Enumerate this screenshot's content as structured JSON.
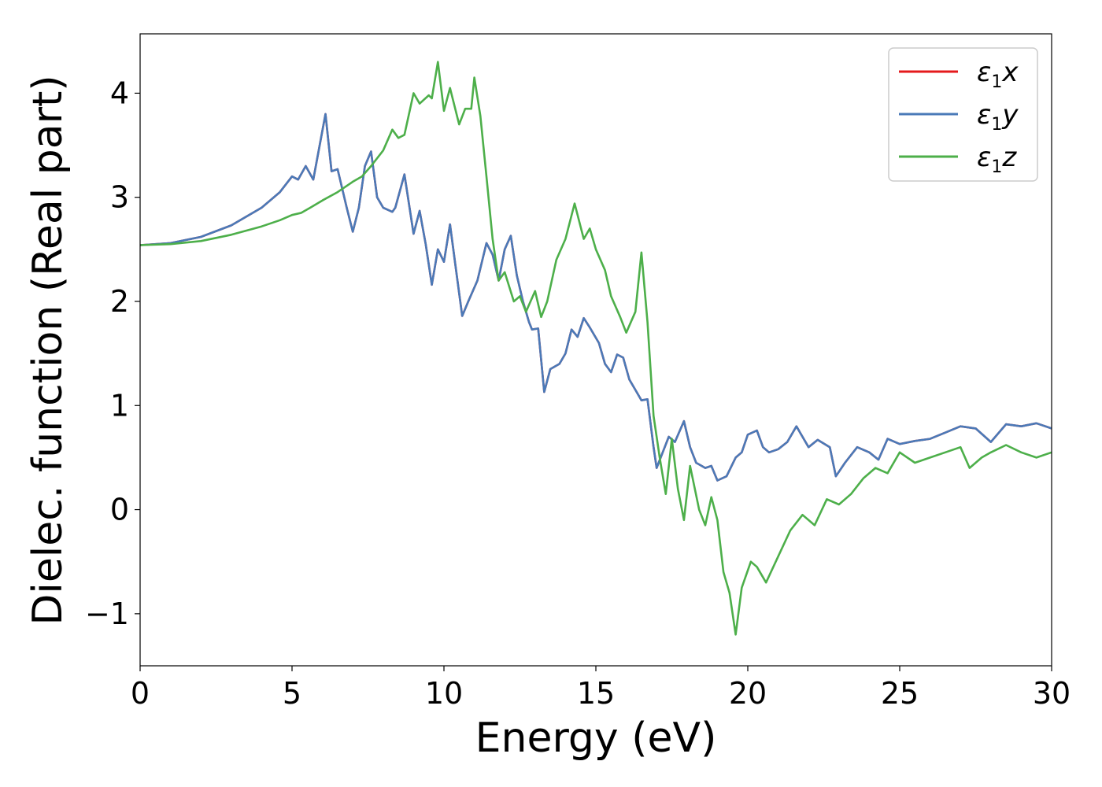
{
  "chart_data": {
    "type": "line",
    "xlabel": "Energy (eV)",
    "ylabel": "Dielec. function (Real part)",
    "xlim": [
      0,
      30
    ],
    "ylim": [
      -1.5,
      4.57
    ],
    "xticks": [
      "0",
      "5",
      "10",
      "15",
      "20",
      "25",
      "30"
    ],
    "yticks": [
      "−1",
      "0",
      "1",
      "2",
      "3",
      "4"
    ],
    "grid": false,
    "legend_position": "top-right",
    "series": [
      {
        "name": "ε1x",
        "symbol": "ε",
        "subscript": "1",
        "axis": "x",
        "color": "#e41a1c",
        "points": [
          [
            0,
            2.54
          ],
          [
            1,
            2.56
          ],
          [
            2,
            2.62
          ],
          [
            3,
            2.73
          ],
          [
            4,
            2.9
          ],
          [
            4.6,
            3.05
          ],
          [
            5,
            3.2
          ],
          [
            5.2,
            3.17
          ],
          [
            5.45,
            3.3
          ],
          [
            5.7,
            3.17
          ],
          [
            6.1,
            3.8
          ],
          [
            6.3,
            3.25
          ],
          [
            6.5,
            3.27
          ],
          [
            6.8,
            2.9
          ],
          [
            7.0,
            2.67
          ],
          [
            7.2,
            2.9
          ],
          [
            7.4,
            3.3
          ],
          [
            7.6,
            3.44
          ],
          [
            7.8,
            3.0
          ],
          [
            8.0,
            2.9
          ],
          [
            8.3,
            2.86
          ],
          [
            8.4,
            2.9
          ],
          [
            8.7,
            3.22
          ],
          [
            9.0,
            2.65
          ],
          [
            9.2,
            2.87
          ],
          [
            9.4,
            2.55
          ],
          [
            9.6,
            2.16
          ],
          [
            9.8,
            2.5
          ],
          [
            10.0,
            2.38
          ],
          [
            10.2,
            2.74
          ],
          [
            10.4,
            2.3
          ],
          [
            10.6,
            1.86
          ],
          [
            10.8,
            2.0
          ],
          [
            11.1,
            2.2
          ],
          [
            11.4,
            2.56
          ],
          [
            11.6,
            2.45
          ],
          [
            11.8,
            2.2
          ],
          [
            12.0,
            2.5
          ],
          [
            12.2,
            2.63
          ],
          [
            12.4,
            2.25
          ],
          [
            12.6,
            2.0
          ],
          [
            12.8,
            1.8
          ],
          [
            12.9,
            1.73
          ],
          [
            13.1,
            1.74
          ],
          [
            13.3,
            1.13
          ],
          [
            13.5,
            1.35
          ],
          [
            13.8,
            1.4
          ],
          [
            14.0,
            1.5
          ],
          [
            14.2,
            1.73
          ],
          [
            14.4,
            1.66
          ],
          [
            14.6,
            1.84
          ],
          [
            14.8,
            1.75
          ],
          [
            15.1,
            1.6
          ],
          [
            15.3,
            1.4
          ],
          [
            15.5,
            1.32
          ],
          [
            15.7,
            1.49
          ],
          [
            15.9,
            1.46
          ],
          [
            16.1,
            1.25
          ],
          [
            16.3,
            1.15
          ],
          [
            16.5,
            1.05
          ],
          [
            16.7,
            1.06
          ],
          [
            16.9,
            0.6
          ],
          [
            17.0,
            0.4
          ],
          [
            17.2,
            0.55
          ],
          [
            17.4,
            0.7
          ],
          [
            17.6,
            0.65
          ],
          [
            17.9,
            0.85
          ],
          [
            18.1,
            0.6
          ],
          [
            18.3,
            0.45
          ],
          [
            18.6,
            0.4
          ],
          [
            18.8,
            0.42
          ],
          [
            19.0,
            0.28
          ],
          [
            19.3,
            0.32
          ],
          [
            19.6,
            0.5
          ],
          [
            19.8,
            0.55
          ],
          [
            20.0,
            0.72
          ],
          [
            20.3,
            0.76
          ],
          [
            20.5,
            0.6
          ],
          [
            20.7,
            0.55
          ],
          [
            21.0,
            0.58
          ],
          [
            21.3,
            0.65
          ],
          [
            21.6,
            0.8
          ],
          [
            22.0,
            0.6
          ],
          [
            22.3,
            0.67
          ],
          [
            22.7,
            0.6
          ],
          [
            22.9,
            0.32
          ],
          [
            23.2,
            0.45
          ],
          [
            23.6,
            0.6
          ],
          [
            24.0,
            0.55
          ],
          [
            24.3,
            0.48
          ],
          [
            24.6,
            0.68
          ],
          [
            25.0,
            0.63
          ],
          [
            25.5,
            0.66
          ],
          [
            26.0,
            0.68
          ],
          [
            26.5,
            0.74
          ],
          [
            27.0,
            0.8
          ],
          [
            27.5,
            0.78
          ],
          [
            28.0,
            0.65
          ],
          [
            28.5,
            0.82
          ],
          [
            29.0,
            0.8
          ],
          [
            29.5,
            0.83
          ],
          [
            30.0,
            0.78
          ]
        ]
      },
      {
        "name": "ε1y",
        "symbol": "ε",
        "subscript": "1",
        "axis": "y",
        "color": "#4a7ab8",
        "points": [
          [
            0,
            2.54
          ],
          [
            1,
            2.56
          ],
          [
            2,
            2.62
          ],
          [
            3,
            2.73
          ],
          [
            4,
            2.9
          ],
          [
            4.6,
            3.05
          ],
          [
            5,
            3.2
          ],
          [
            5.2,
            3.17
          ],
          [
            5.45,
            3.3
          ],
          [
            5.7,
            3.17
          ],
          [
            6.1,
            3.8
          ],
          [
            6.3,
            3.25
          ],
          [
            6.5,
            3.27
          ],
          [
            6.8,
            2.9
          ],
          [
            7.0,
            2.67
          ],
          [
            7.2,
            2.9
          ],
          [
            7.4,
            3.3
          ],
          [
            7.6,
            3.44
          ],
          [
            7.8,
            3.0
          ],
          [
            8.0,
            2.9
          ],
          [
            8.3,
            2.86
          ],
          [
            8.4,
            2.9
          ],
          [
            8.7,
            3.22
          ],
          [
            9.0,
            2.65
          ],
          [
            9.2,
            2.87
          ],
          [
            9.4,
            2.55
          ],
          [
            9.6,
            2.16
          ],
          [
            9.8,
            2.5
          ],
          [
            10.0,
            2.38
          ],
          [
            10.2,
            2.74
          ],
          [
            10.4,
            2.3
          ],
          [
            10.6,
            1.86
          ],
          [
            10.8,
            2.0
          ],
          [
            11.1,
            2.2
          ],
          [
            11.4,
            2.56
          ],
          [
            11.6,
            2.45
          ],
          [
            11.8,
            2.2
          ],
          [
            12.0,
            2.5
          ],
          [
            12.2,
            2.63
          ],
          [
            12.4,
            2.25
          ],
          [
            12.6,
            2.0
          ],
          [
            12.8,
            1.8
          ],
          [
            12.9,
            1.73
          ],
          [
            13.1,
            1.74
          ],
          [
            13.3,
            1.13
          ],
          [
            13.5,
            1.35
          ],
          [
            13.8,
            1.4
          ],
          [
            14.0,
            1.5
          ],
          [
            14.2,
            1.73
          ],
          [
            14.4,
            1.66
          ],
          [
            14.6,
            1.84
          ],
          [
            14.8,
            1.75
          ],
          [
            15.1,
            1.6
          ],
          [
            15.3,
            1.4
          ],
          [
            15.5,
            1.32
          ],
          [
            15.7,
            1.49
          ],
          [
            15.9,
            1.46
          ],
          [
            16.1,
            1.25
          ],
          [
            16.3,
            1.15
          ],
          [
            16.5,
            1.05
          ],
          [
            16.7,
            1.06
          ],
          [
            16.9,
            0.6
          ],
          [
            17.0,
            0.4
          ],
          [
            17.2,
            0.55
          ],
          [
            17.4,
            0.7
          ],
          [
            17.6,
            0.65
          ],
          [
            17.9,
            0.85
          ],
          [
            18.1,
            0.6
          ],
          [
            18.3,
            0.45
          ],
          [
            18.6,
            0.4
          ],
          [
            18.8,
            0.42
          ],
          [
            19.0,
            0.28
          ],
          [
            19.3,
            0.32
          ],
          [
            19.6,
            0.5
          ],
          [
            19.8,
            0.55
          ],
          [
            20.0,
            0.72
          ],
          [
            20.3,
            0.76
          ],
          [
            20.5,
            0.6
          ],
          [
            20.7,
            0.55
          ],
          [
            21.0,
            0.58
          ],
          [
            21.3,
            0.65
          ],
          [
            21.6,
            0.8
          ],
          [
            22.0,
            0.6
          ],
          [
            22.3,
            0.67
          ],
          [
            22.7,
            0.6
          ],
          [
            22.9,
            0.32
          ],
          [
            23.2,
            0.45
          ],
          [
            23.6,
            0.6
          ],
          [
            24.0,
            0.55
          ],
          [
            24.3,
            0.48
          ],
          [
            24.6,
            0.68
          ],
          [
            25.0,
            0.63
          ],
          [
            25.5,
            0.66
          ],
          [
            26.0,
            0.68
          ],
          [
            26.5,
            0.74
          ],
          [
            27.0,
            0.8
          ],
          [
            27.5,
            0.78
          ],
          [
            28.0,
            0.65
          ],
          [
            28.5,
            0.82
          ],
          [
            29.0,
            0.8
          ],
          [
            29.5,
            0.83
          ],
          [
            30.0,
            0.78
          ]
        ]
      },
      {
        "name": "ε1z",
        "symbol": "ε",
        "subscript": "1",
        "axis": "z",
        "color": "#4daf4a",
        "points": [
          [
            0,
            2.54
          ],
          [
            1,
            2.55
          ],
          [
            2,
            2.58
          ],
          [
            3,
            2.64
          ],
          [
            4,
            2.72
          ],
          [
            4.6,
            2.78
          ],
          [
            5,
            2.83
          ],
          [
            5.3,
            2.85
          ],
          [
            5.6,
            2.9
          ],
          [
            6.0,
            2.97
          ],
          [
            6.5,
            3.05
          ],
          [
            7.0,
            3.15
          ],
          [
            7.3,
            3.2
          ],
          [
            7.6,
            3.3
          ],
          [
            8.0,
            3.45
          ],
          [
            8.3,
            3.65
          ],
          [
            8.5,
            3.57
          ],
          [
            8.7,
            3.6
          ],
          [
            9.0,
            4.0
          ],
          [
            9.2,
            3.9
          ],
          [
            9.5,
            3.98
          ],
          [
            9.6,
            3.95
          ],
          [
            9.8,
            4.3
          ],
          [
            10.0,
            3.83
          ],
          [
            10.2,
            4.05
          ],
          [
            10.5,
            3.7
          ],
          [
            10.7,
            3.85
          ],
          [
            10.9,
            3.85
          ],
          [
            11.0,
            4.15
          ],
          [
            11.2,
            3.78
          ],
          [
            11.4,
            3.2
          ],
          [
            11.6,
            2.6
          ],
          [
            11.8,
            2.2
          ],
          [
            12.0,
            2.28
          ],
          [
            12.3,
            2.0
          ],
          [
            12.5,
            2.05
          ],
          [
            12.7,
            1.9
          ],
          [
            13.0,
            2.1
          ],
          [
            13.2,
            1.85
          ],
          [
            13.4,
            2.0
          ],
          [
            13.7,
            2.4
          ],
          [
            14.0,
            2.6
          ],
          [
            14.3,
            2.94
          ],
          [
            14.6,
            2.6
          ],
          [
            14.8,
            2.7
          ],
          [
            15.0,
            2.5
          ],
          [
            15.3,
            2.3
          ],
          [
            15.5,
            2.05
          ],
          [
            15.8,
            1.85
          ],
          [
            16.0,
            1.7
          ],
          [
            16.3,
            1.9
          ],
          [
            16.5,
            2.47
          ],
          [
            16.7,
            1.8
          ],
          [
            16.9,
            0.9
          ],
          [
            17.1,
            0.5
          ],
          [
            17.3,
            0.15
          ],
          [
            17.5,
            0.68
          ],
          [
            17.7,
            0.2
          ],
          [
            17.9,
            -0.1
          ],
          [
            18.1,
            0.42
          ],
          [
            18.4,
            0.0
          ],
          [
            18.6,
            -0.15
          ],
          [
            18.8,
            0.12
          ],
          [
            19.0,
            -0.1
          ],
          [
            19.2,
            -0.6
          ],
          [
            19.4,
            -0.8
          ],
          [
            19.6,
            -1.2
          ],
          [
            19.8,
            -0.75
          ],
          [
            20.1,
            -0.5
          ],
          [
            20.3,
            -0.55
          ],
          [
            20.6,
            -0.7
          ],
          [
            21.0,
            -0.45
          ],
          [
            21.4,
            -0.2
          ],
          [
            21.8,
            -0.05
          ],
          [
            22.2,
            -0.15
          ],
          [
            22.6,
            0.1
          ],
          [
            23.0,
            0.05
          ],
          [
            23.4,
            0.15
          ],
          [
            23.8,
            0.3
          ],
          [
            24.2,
            0.4
          ],
          [
            24.6,
            0.35
          ],
          [
            25.0,
            0.55
          ],
          [
            25.5,
            0.45
          ],
          [
            26.0,
            0.5
          ],
          [
            26.5,
            0.55
          ],
          [
            27.0,
            0.6
          ],
          [
            27.3,
            0.4
          ],
          [
            27.7,
            0.5
          ],
          [
            28.0,
            0.55
          ],
          [
            28.5,
            0.62
          ],
          [
            29.0,
            0.55
          ],
          [
            29.5,
            0.5
          ],
          [
            30.0,
            0.55
          ]
        ]
      }
    ]
  }
}
